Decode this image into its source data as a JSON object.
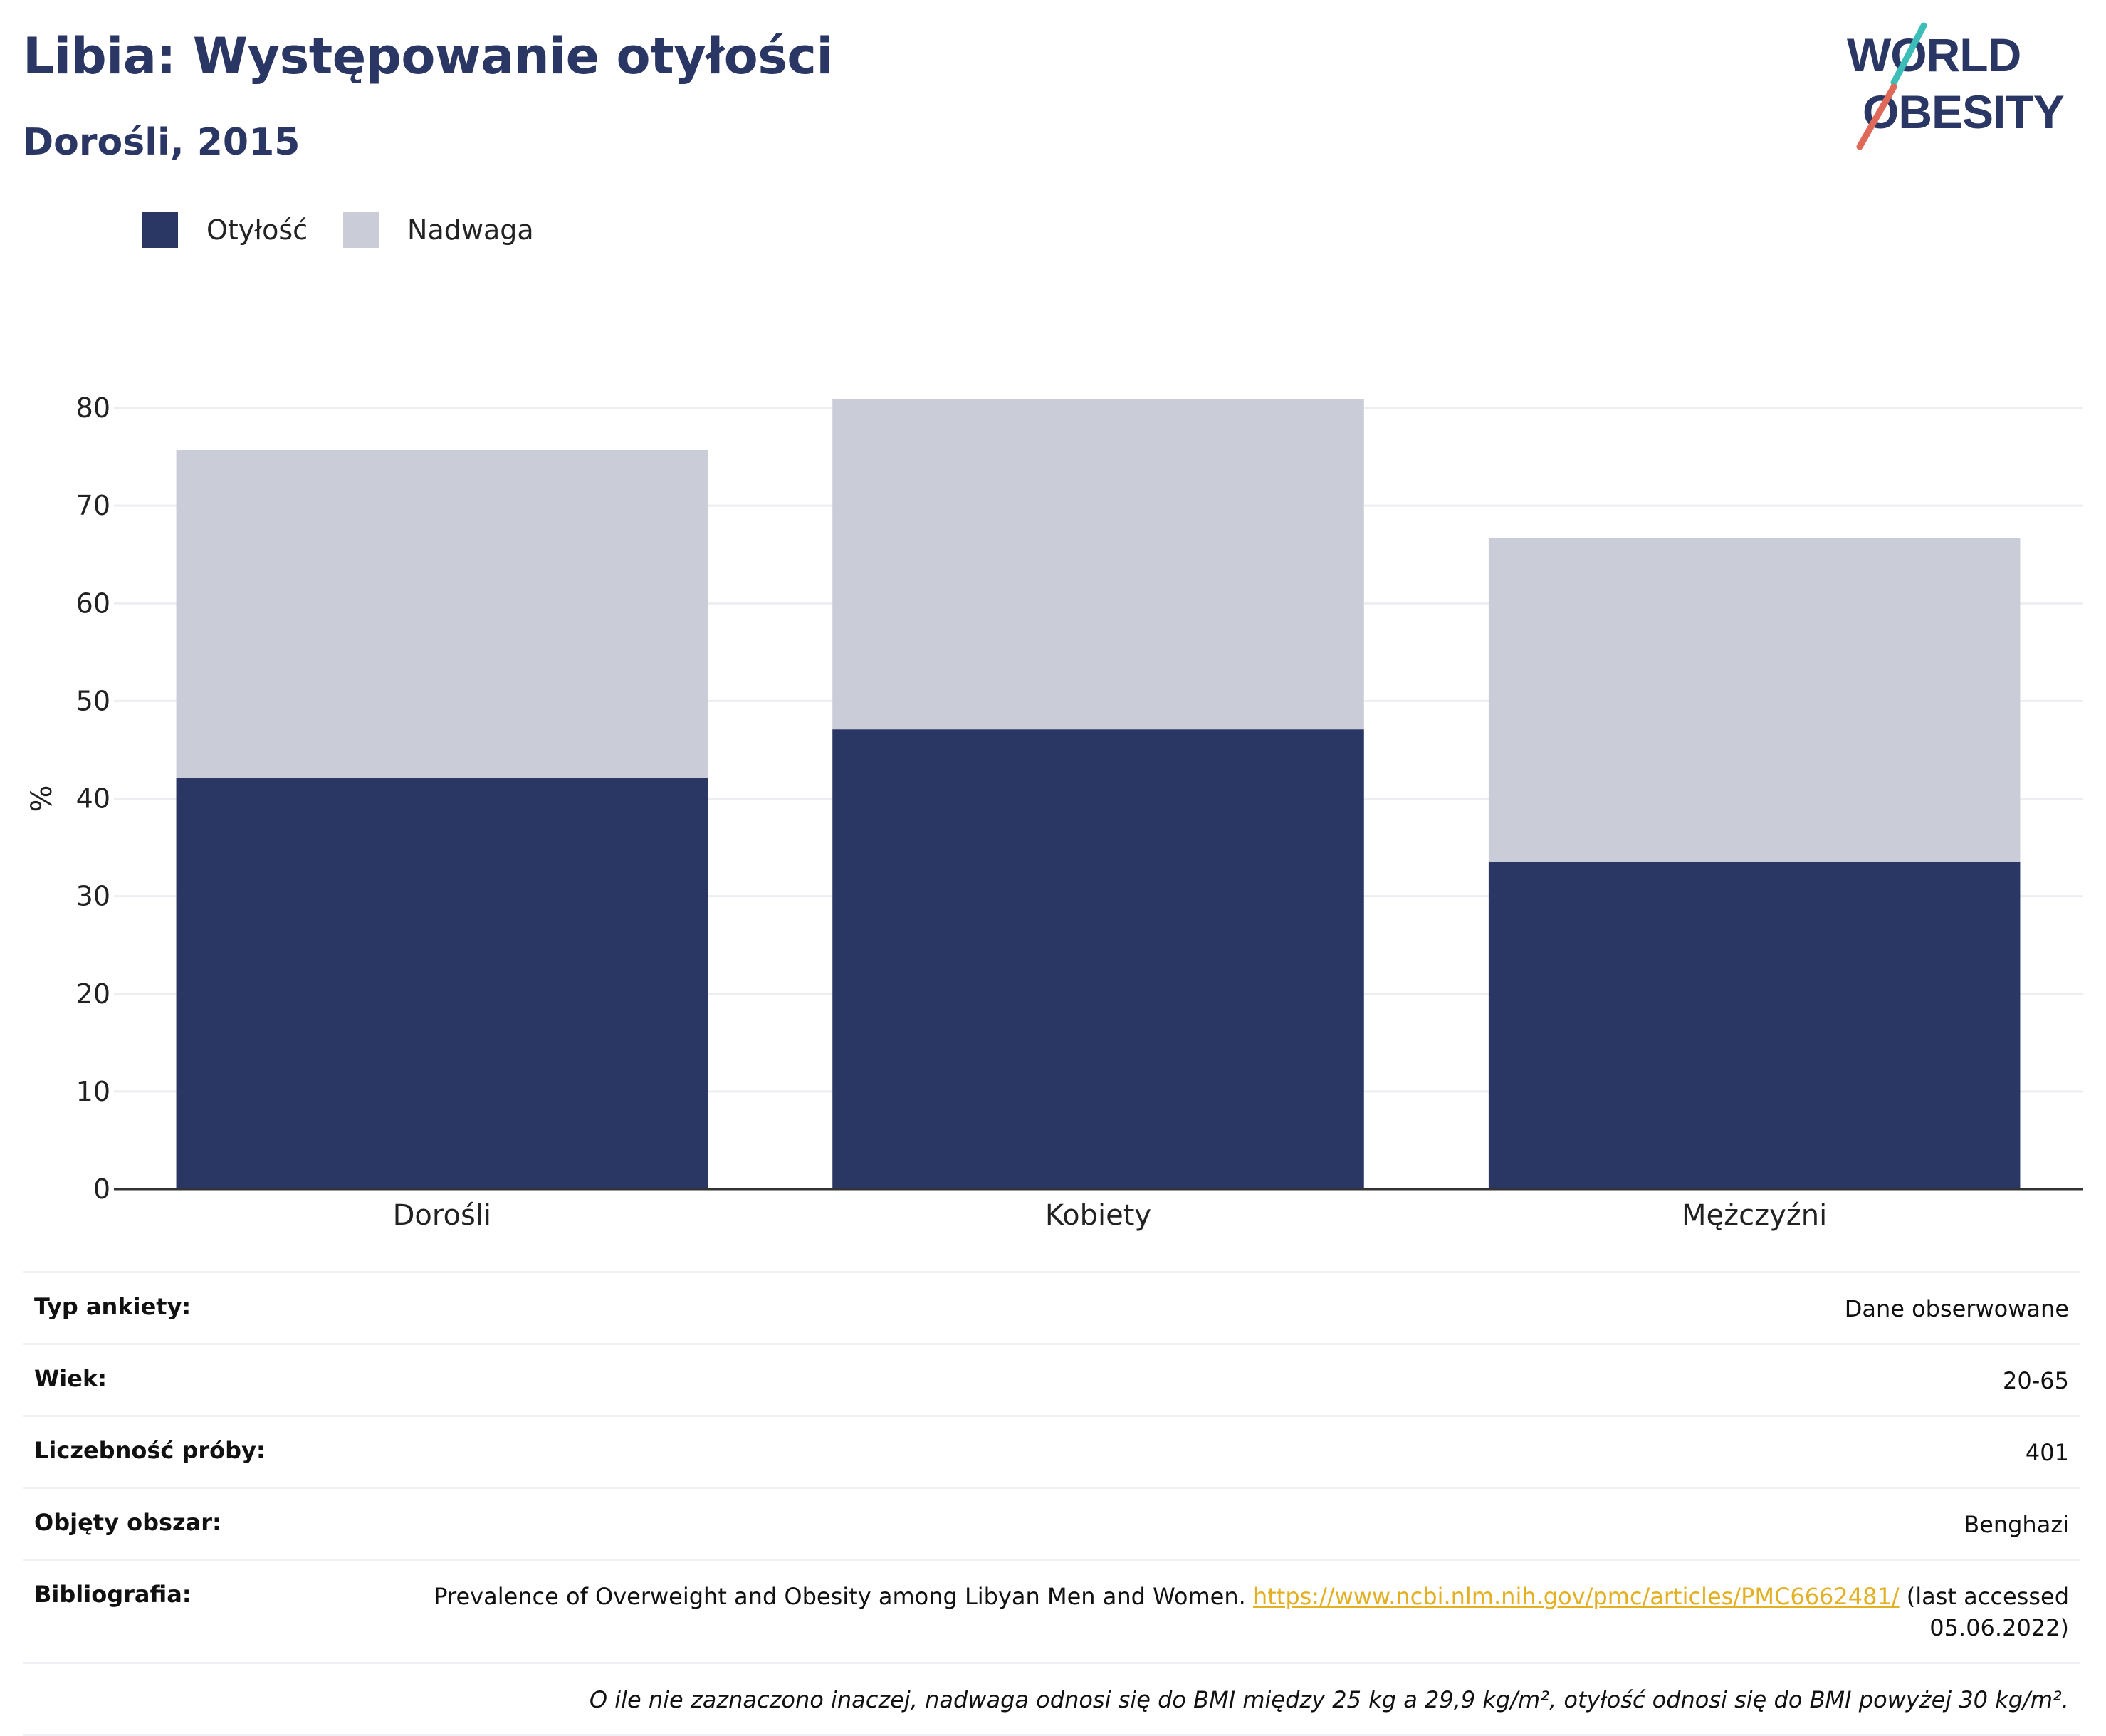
{
  "header": {
    "title": "Libia: Występowanie otyłości",
    "subtitle": "Dorośli, 2015"
  },
  "logo": {
    "line1": "WORLD",
    "line2": "OBESITY"
  },
  "colors": {
    "obesity": "#2a3664",
    "overweight": "#cacdd8",
    "accent_teal": "#3dbdb8",
    "accent_red": "#e06a5a",
    "link": "#e3b024"
  },
  "chart_data": {
    "type": "bar",
    "stacked": true,
    "categories": [
      "Dorośli",
      "Kobiety",
      "Mężczyźni"
    ],
    "series": [
      {
        "name": "Otyłość",
        "values": [
          42.1,
          47.1,
          33.5
        ]
      },
      {
        "name": "Nadwaga",
        "values": [
          33.6,
          33.8,
          33.2
        ]
      }
    ],
    "ylabel": "%",
    "ylim": [
      0,
      80
    ],
    "yticks": [
      "0",
      "10",
      "20",
      "30",
      "40",
      "50",
      "60",
      "70",
      "80"
    ],
    "grid": true,
    "legend_position": "top-left"
  },
  "info": {
    "rows": [
      {
        "key": "Typ ankiety:",
        "value": "Dane obserwowane"
      },
      {
        "key": "Wiek:",
        "value": "20-65"
      },
      {
        "key": "Liczebność próby:",
        "value": "401"
      },
      {
        "key": "Objęty obszar:",
        "value": "Benghazi"
      }
    ],
    "bibliography": {
      "key": "Bibliografia:",
      "text": "Prevalence of Overweight and Obesity among Libyan Men and Women.",
      "link": "https://www.ncbi.nlm.nih.gov/pmc/articles/PMC6662481/",
      "suffix": "(last accessed 05.06.2022)"
    },
    "note": "O ile nie zaznaczono inaczej, nadwaga odnosi się do BMI między 25 kg a 29,9 kg/m², otyłość odnosi się do BMI powyżej 30 kg/m²."
  }
}
